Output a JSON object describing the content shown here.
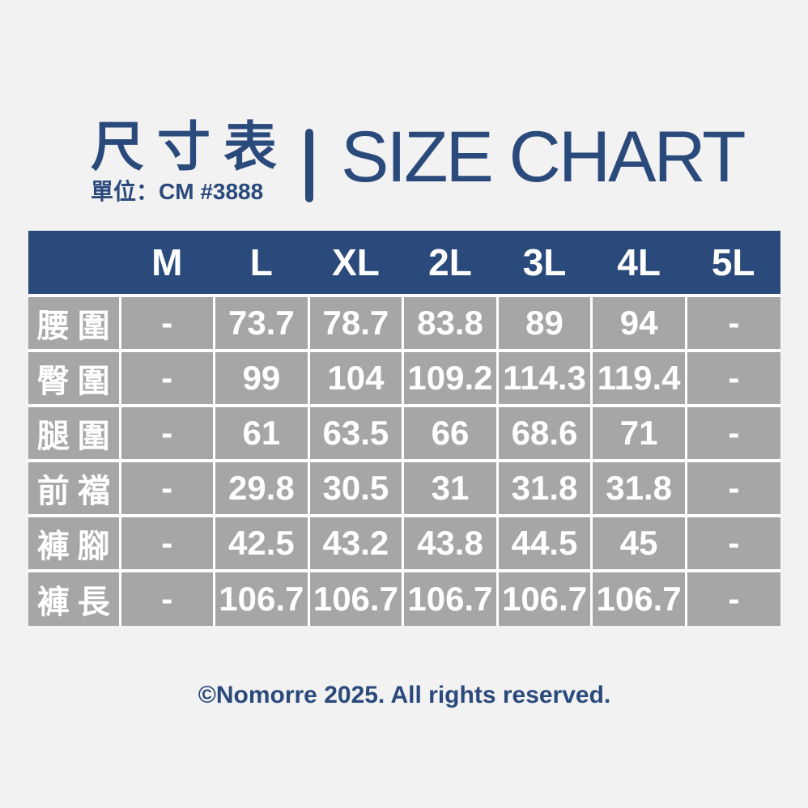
{
  "theme": {
    "accent_blue": "#2b4a7c",
    "cell_gray": "#a6a6a6",
    "background": "#f2f2f2",
    "cell_text": "#ffffff"
  },
  "header": {
    "title_zh": "尺寸表",
    "unit_note": "單位：CM #3888",
    "title_en": "SIZE CHART"
  },
  "chart_data": {
    "type": "table",
    "title": "尺寸表 | SIZE CHART",
    "unit_note": "單位：CM #3888",
    "columns": [
      "M",
      "L",
      "XL",
      "2L",
      "3L",
      "4L",
      "5L"
    ],
    "rows": [
      {
        "label": "腰圍",
        "values": [
          "-",
          "73.7",
          "78.7",
          "83.8",
          "89",
          "94",
          "-"
        ]
      },
      {
        "label": "臀圍",
        "values": [
          "-",
          "99",
          "104",
          "109.2",
          "114.3",
          "119.4",
          "-"
        ]
      },
      {
        "label": "腿圍",
        "values": [
          "-",
          "61",
          "63.5",
          "66",
          "68.6",
          "71",
          "-"
        ]
      },
      {
        "label": "前襠",
        "values": [
          "-",
          "29.8",
          "30.5",
          "31",
          "31.8",
          "31.8",
          "-"
        ]
      },
      {
        "label": "褲腳",
        "values": [
          "-",
          "42.5",
          "43.2",
          "43.8",
          "44.5",
          "45",
          "-"
        ]
      },
      {
        "label": "褲長",
        "values": [
          "-",
          "106.7",
          "106.7",
          "106.7",
          "106.7",
          "106.7",
          "-"
        ]
      }
    ]
  },
  "footer": {
    "copyright": "©Nomorre 2025. All rights reserved."
  }
}
